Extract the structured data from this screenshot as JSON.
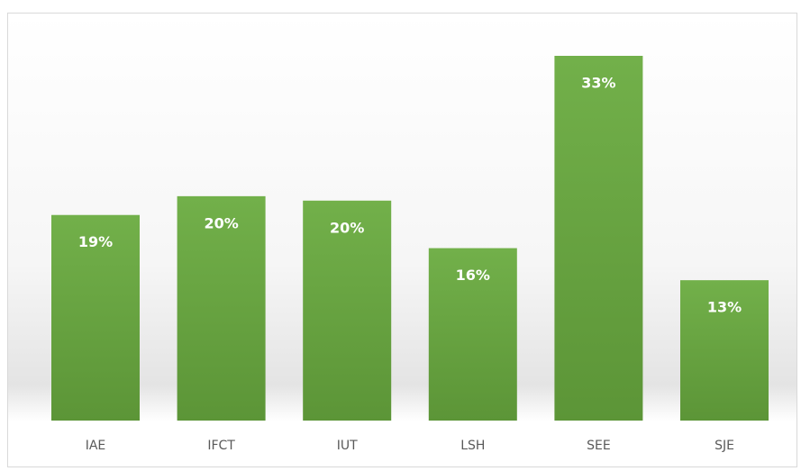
{
  "chart_data": {
    "type": "bar",
    "categories": [
      "IAE",
      "IFCT",
      "IUT",
      "LSH",
      "SEE",
      "SJE"
    ],
    "values": [
      18.6,
      20.3,
      19.9,
      15.6,
      33,
      12.7
    ],
    "value_labels": [
      "19%",
      "20%",
      "20%",
      "16%",
      "33%",
      "13%"
    ],
    "color": "#6aa843"
  }
}
